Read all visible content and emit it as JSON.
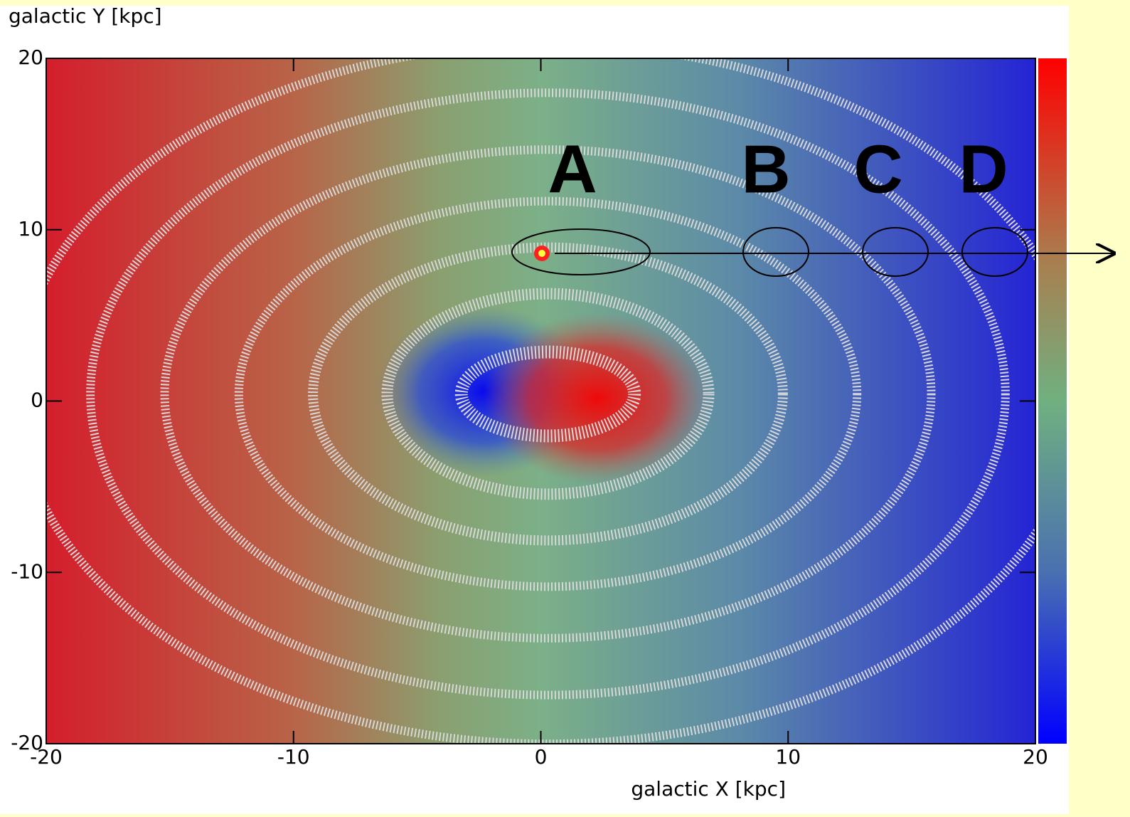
{
  "chart_data": {
    "type": "map",
    "ylabel": "galactic Y [kpc]",
    "xlabel": "galactic X [kpc]",
    "xlim": [
      -20,
      20
    ],
    "ylim": [
      -20,
      20
    ],
    "xticks": [
      -20,
      -10,
      0,
      10,
      20
    ],
    "yticks": [
      -20,
      -10,
      0,
      10,
      20
    ],
    "annotations": [
      "A",
      "B",
      "C",
      "D"
    ]
  }
}
